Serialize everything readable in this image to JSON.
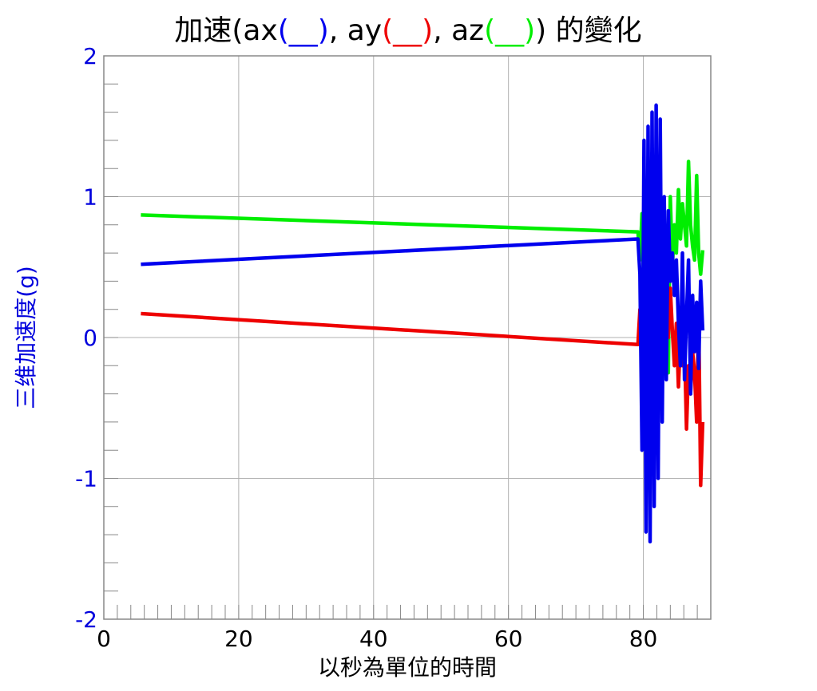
{
  "chart_data": {
    "type": "line",
    "title": {
      "prefix": "加速(ax",
      "ax_marker": "(__)",
      "sep1": ", ay",
      "ay_marker": "(__)",
      "sep2": ", az",
      "az_marker": "(__)",
      "suffix": ") 的變化"
    },
    "xlabel": "以秒為單位的時間",
    "ylabel": "三维加速度(g)",
    "xlim": [
      0,
      90
    ],
    "ylim": [
      -2,
      2
    ],
    "x_ticks": [
      "0",
      "20",
      "40",
      "60",
      "80"
    ],
    "y_ticks": [
      "2",
      "1",
      "0",
      "-1",
      "-2"
    ],
    "grid": true,
    "colors": {
      "ax": "#0000ee",
      "ay": "#ee0000",
      "az": "#00ee00",
      "ytick": "#0000dd"
    },
    "series": [
      {
        "key": "az",
        "color": "#00ee00",
        "x": [
          5.5,
          79.2,
          79.5,
          79.8,
          80.1,
          80.4,
          80.7,
          81.0,
          81.3,
          81.6,
          81.9,
          82.2,
          82.5,
          82.8,
          83.1,
          83.4,
          83.7,
          84.0,
          84.3,
          84.6,
          84.9,
          85.2,
          85.5,
          85.8,
          86.1,
          86.4,
          86.7,
          87.0,
          87.3,
          87.6,
          87.9,
          88.2,
          88.5,
          88.8
        ],
        "y": [
          0.87,
          0.75,
          0.55,
          0.88,
          0.3,
          -0.6,
          0.4,
          -0.1,
          0.1,
          0.3,
          -0.3,
          0.35,
          -0.2,
          0.7,
          0.2,
          0.4,
          -0.25,
          1.0,
          0.5,
          0.8,
          0.6,
          1.05,
          0.7,
          0.95,
          0.8,
          0.65,
          1.25,
          0.8,
          0.65,
          0.55,
          1.15,
          0.6,
          0.45,
          0.62
        ]
      },
      {
        "key": "ay",
        "color": "#ee0000",
        "x": [
          5.5,
          79.2,
          79.5,
          79.8,
          80.1,
          80.4,
          80.7,
          81.0,
          81.3,
          81.6,
          81.9,
          82.2,
          82.5,
          82.8,
          83.1,
          83.4,
          83.7,
          84.0,
          84.3,
          84.6,
          84.9,
          85.2,
          85.5,
          85.8,
          86.1,
          86.4,
          86.7,
          87.0,
          87.3,
          87.6,
          87.9,
          88.2,
          88.5,
          88.8
        ],
        "y": [
          0.17,
          -0.05,
          0.2,
          -0.1,
          0.45,
          0.1,
          0.4,
          -0.2,
          0.5,
          0.2,
          0.6,
          0.0,
          0.65,
          0.1,
          -0.15,
          0.25,
          0.0,
          0.35,
          0.05,
          -0.2,
          0.1,
          -0.35,
          0.0,
          -0.2,
          -0.05,
          -0.65,
          -0.2,
          -0.4,
          -0.1,
          -0.25,
          -0.6,
          0.2,
          -1.05,
          -0.6
        ]
      },
      {
        "key": "ax",
        "color": "#0000ee",
        "x": [
          5.5,
          79.2,
          79.5,
          79.8,
          80.1,
          80.4,
          80.7,
          81.0,
          81.3,
          81.6,
          81.9,
          82.2,
          82.5,
          82.8,
          83.1,
          83.4,
          83.7,
          84.0,
          84.3,
          84.6,
          84.9,
          85.2,
          85.5,
          85.8,
          86.1,
          86.4,
          86.7,
          87.0,
          87.3,
          87.6,
          87.9,
          88.2,
          88.5,
          88.8
        ],
        "y": [
          0.52,
          0.7,
          0.45,
          -0.8,
          1.4,
          -1.38,
          1.5,
          -1.45,
          1.6,
          -1.2,
          1.65,
          -1.0,
          1.55,
          -0.6,
          1.0,
          -0.3,
          0.9,
          0.4,
          0.6,
          0.3,
          0.55,
          0.1,
          -0.2,
          0.6,
          -0.3,
          0.15,
          0.55,
          -0.4,
          0.3,
          -0.1,
          0.25,
          -0.22,
          0.4,
          0.05
        ]
      }
    ]
  }
}
